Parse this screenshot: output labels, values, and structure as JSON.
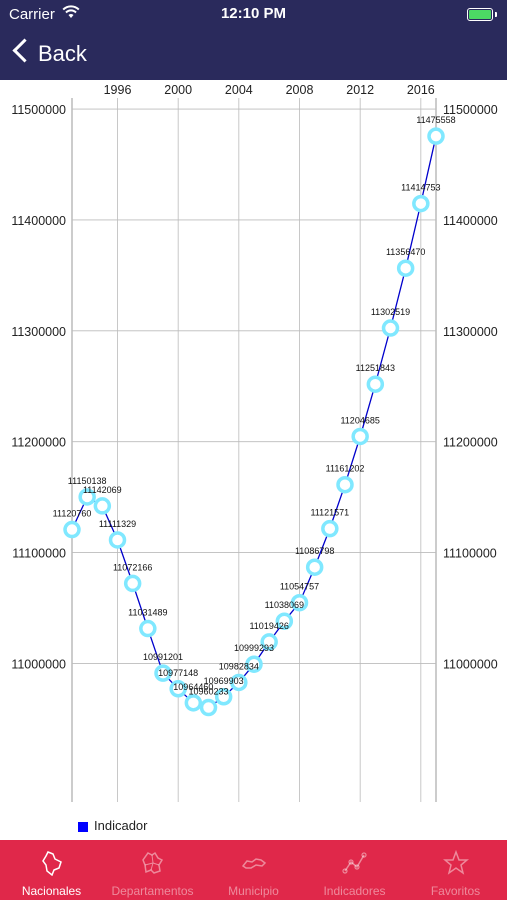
{
  "status": {
    "carrier": "Carrier",
    "time": "12:10 PM"
  },
  "nav": {
    "back_label": "Back"
  },
  "legend": {
    "label": "Indicador",
    "color": "#0000ff"
  },
  "colors": {
    "bars": "#2a2a5c",
    "tabbar": "#e0284a",
    "line": "#0000cc",
    "marker": "#80e8ff"
  },
  "tabs": [
    {
      "label": "Nacionales",
      "icon": "map-icon",
      "active": true
    },
    {
      "label": "Departamentos",
      "icon": "region-map-icon",
      "active": false
    },
    {
      "label": "Municipio",
      "icon": "municipio-icon",
      "active": false
    },
    {
      "label": "Indicadores",
      "icon": "graph-icon",
      "active": false
    },
    {
      "label": "Favoritos",
      "icon": "star-icon",
      "active": false
    }
  ],
  "chart_data": {
    "type": "line",
    "x_ticks": [
      1996,
      2000,
      2004,
      2008,
      2012,
      2016
    ],
    "y_ticks": [
      11000000,
      11100000,
      11200000,
      11300000,
      11400000,
      11500000
    ],
    "xlim": [
      1993,
      2017
    ],
    "ylim": [
      10875000,
      11510000
    ],
    "grid": true,
    "legend": "bottom-left",
    "series": [
      {
        "name": "Indicador",
        "x": [
          1993,
          1994,
          1995,
          1996,
          1997,
          1998,
          1999,
          2000,
          2001,
          2002,
          2003,
          2004,
          2005,
          2006,
          2007,
          2008,
          2009,
          2010,
          2011,
          2012,
          2013,
          2014,
          2015,
          2016,
          2017
        ],
        "values": [
          11120760,
          11150138,
          11142069,
          11111329,
          11072166,
          11031489,
          10991201,
          10977148,
          10964460,
          10960233,
          10969903,
          10982834,
          10999293,
          11019426,
          11038069,
          11054757,
          11086798,
          11121571,
          11161202,
          11204685,
          11251843,
          11302519,
          11356470,
          11414753,
          11475558
        ],
        "labels": [
          "11120760",
          "11150138",
          "11142069",
          "11111329",
          "11072166",
          "11031489",
          "10991201",
          "10977148",
          "10964460",
          "10960233",
          "10969903",
          "10982834",
          "10999293",
          "11019426",
          "11038069",
          "11054757",
          "11086798",
          "11121571",
          "11161202",
          "11204685",
          "11251843",
          "11302519",
          "11356470",
          "11414753",
          "11475558"
        ]
      }
    ]
  }
}
